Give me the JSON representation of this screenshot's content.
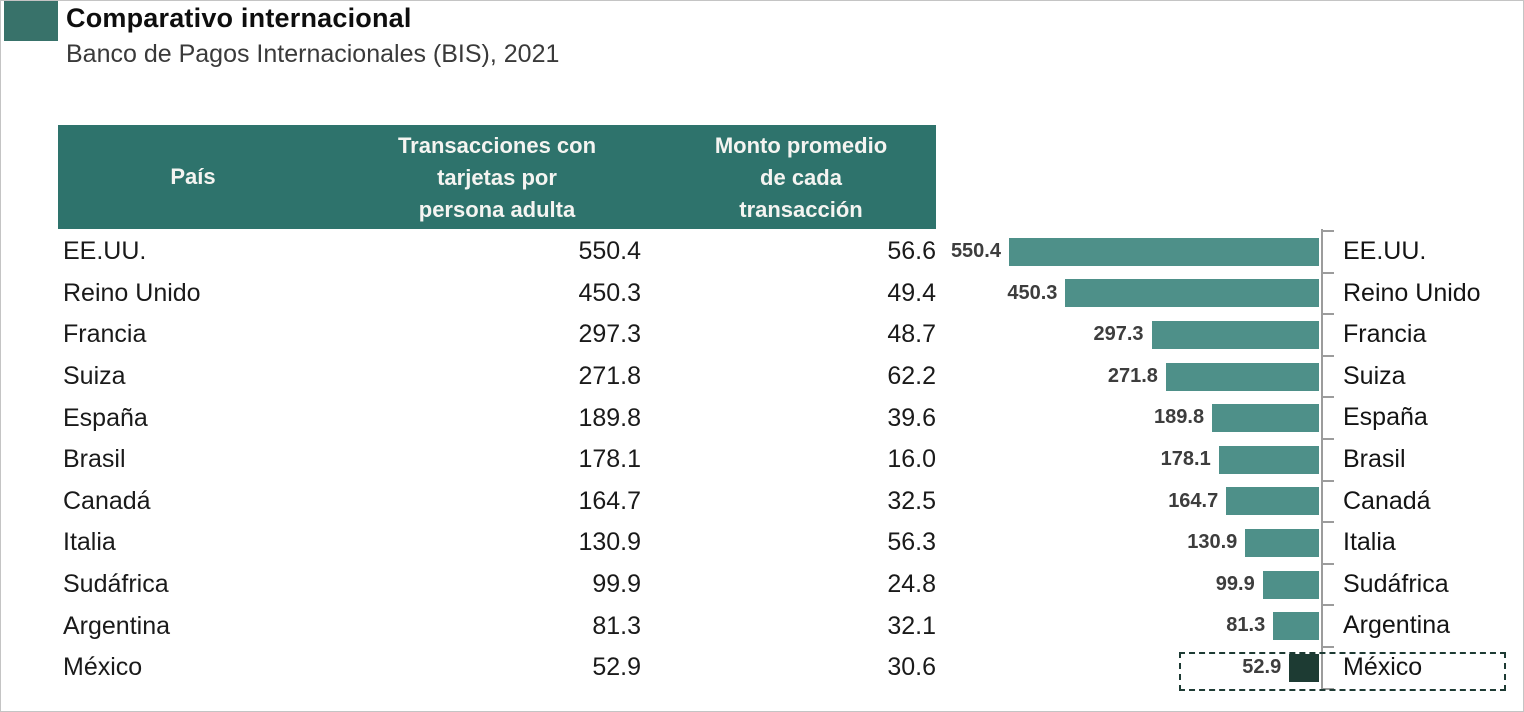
{
  "header": {
    "title": "Comparativo internacional",
    "subtitle": "Banco de Pagos Internacionales (BIS), 2021"
  },
  "table": {
    "columns": [
      {
        "label": "País",
        "lines": [
          "País"
        ]
      },
      {
        "label": "Transacciones con tarjetas por persona adulta",
        "lines": [
          "Transacciones con",
          "tarjetas por",
          "persona adulta"
        ]
      },
      {
        "label": "Monto promedio de cada transacción",
        "lines": [
          "Monto promedio",
          "de cada",
          "transacción"
        ]
      }
    ],
    "rows": [
      {
        "country": "EE.UU.",
        "transactions": "550.4",
        "avg_amount": "56.6"
      },
      {
        "country": "Reino Unido",
        "transactions": "450.3",
        "avg_amount": "49.4"
      },
      {
        "country": "Francia",
        "transactions": "297.3",
        "avg_amount": "48.7"
      },
      {
        "country": "Suiza",
        "transactions": "271.8",
        "avg_amount": "62.2"
      },
      {
        "country": "España",
        "transactions": "189.8",
        "avg_amount": "39.6"
      },
      {
        "country": "Brasil",
        "transactions": "178.1",
        "avg_amount": "16.0"
      },
      {
        "country": "Canadá",
        "transactions": "164.7",
        "avg_amount": "32.5"
      },
      {
        "country": "Italia",
        "transactions": "130.9",
        "avg_amount": "56.3"
      },
      {
        "country": "Sudáfrica",
        "transactions": "99.9",
        "avg_amount": "24.8"
      },
      {
        "country": "Argentina",
        "transactions": "81.3",
        "avg_amount": "32.1"
      },
      {
        "country": "México",
        "transactions": "52.9",
        "avg_amount": "30.6"
      }
    ]
  },
  "chart_data": [
    {
      "type": "table",
      "title": "Comparativo internacional",
      "subtitle": "Banco de Pagos Internacionales (BIS), 2021",
      "columns": [
        "País",
        "Transacciones con tarjetas por persona adulta",
        "Monto promedio de cada transacción"
      ],
      "rows": [
        [
          "EE.UU.",
          550.4,
          56.6
        ],
        [
          "Reino Unido",
          450.3,
          49.4
        ],
        [
          "Francia",
          297.3,
          48.7
        ],
        [
          "Suiza",
          271.8,
          62.2
        ],
        [
          "España",
          189.8,
          39.6
        ],
        [
          "Brasil",
          178.1,
          16.0
        ],
        [
          "Canadá",
          164.7,
          32.5
        ],
        [
          "Italia",
          130.9,
          56.3
        ],
        [
          "Sudáfrica",
          99.9,
          24.8
        ],
        [
          "Argentina",
          81.3,
          32.1
        ],
        [
          "México",
          52.9,
          30.6
        ]
      ]
    },
    {
      "type": "bar",
      "orientation": "horizontal",
      "direction": "right-to-left",
      "categories": [
        "EE.UU.",
        "Reino Unido",
        "Francia",
        "Suiza",
        "España",
        "Brasil",
        "Canadá",
        "Italia",
        "Sudáfrica",
        "Argentina",
        "México"
      ],
      "values": [
        550.4,
        450.3,
        297.3,
        271.8,
        189.8,
        178.1,
        164.7,
        130.9,
        99.9,
        81.3,
        52.9
      ],
      "value_labels": [
        "550.4",
        "450.3",
        "297.3",
        "271.8",
        "189.8",
        "178.1",
        "164.7",
        "130.9",
        "99.9",
        "81.3",
        "52.9"
      ],
      "xlim": [
        0,
        550.4
      ],
      "grid": false,
      "legend": false,
      "highlight_category": "México",
      "highlight_note": "México row outlined with dashed box"
    }
  ],
  "colors": {
    "accent_square": "#38726a",
    "table_header_bg": "#2e736c",
    "table_header_text": "#f4f4f1",
    "bar": "#4e9089",
    "bar_highlight": "#1d3b33",
    "axis": "#9c9c9c",
    "value_label": "#3d3d3d",
    "body_text": "#1a1a1a",
    "highlight_box_border": "#1e3b34"
  }
}
